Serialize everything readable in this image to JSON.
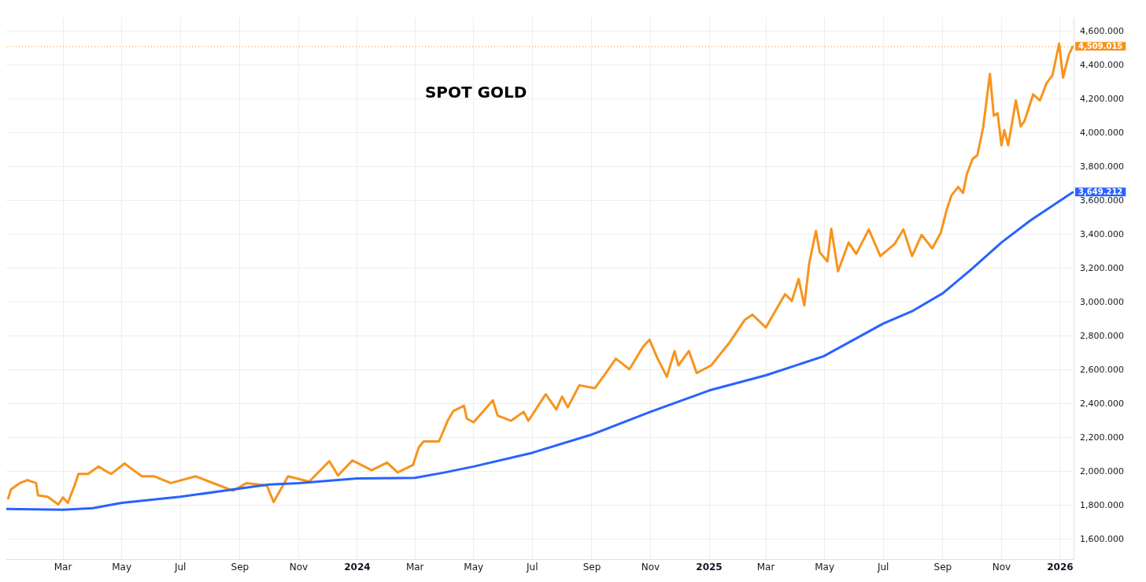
{
  "chart_data": {
    "type": "line",
    "title": "SPOT GOLD",
    "grid": true,
    "marker": "none",
    "line_style": "solid",
    "xlim": [
      "2023-01-01",
      "2026-01-15"
    ],
    "xticks": [
      {
        "value": "2023-03-01",
        "label": "Mar"
      },
      {
        "value": "2023-05-01",
        "label": "May"
      },
      {
        "value": "2023-07-01",
        "label": "Jul"
      },
      {
        "value": "2023-09-01",
        "label": "Sep"
      },
      {
        "value": "2023-11-01",
        "label": "Nov"
      },
      {
        "value": "2024-01-01",
        "label": "2024"
      },
      {
        "value": "2024-03-01",
        "label": "Mar"
      },
      {
        "value": "2024-05-01",
        "label": "May"
      },
      {
        "value": "2024-07-01",
        "label": "Jul"
      },
      {
        "value": "2024-09-01",
        "label": "Sep"
      },
      {
        "value": "2024-11-01",
        "label": "Nov"
      },
      {
        "value": "2025-01-01",
        "label": "2025"
      },
      {
        "value": "2025-03-01",
        "label": "Mar"
      },
      {
        "value": "2025-05-01",
        "label": "May"
      },
      {
        "value": "2025-07-01",
        "label": "Jul"
      },
      {
        "value": "2025-09-01",
        "label": "Sep"
      },
      {
        "value": "2025-11-01",
        "label": "Nov"
      },
      {
        "value": "2026-01-01",
        "label": "2026"
      }
    ],
    "ylim": [
      1480,
      4680
    ],
    "yticks": [
      {
        "value": 1600,
        "label": "1,600.000"
      },
      {
        "value": 1800,
        "label": "1,800.000"
      },
      {
        "value": 2000,
        "label": "2,000.000"
      },
      {
        "value": 2200,
        "label": "2,200.000"
      },
      {
        "value": 2400,
        "label": "2,400.000"
      },
      {
        "value": 2600,
        "label": "2,600.000"
      },
      {
        "value": 2800,
        "label": "2,800.000"
      },
      {
        "value": 3000,
        "label": "3,000.000"
      },
      {
        "value": 3200,
        "label": "3,200.000"
      },
      {
        "value": 3400,
        "label": "3,400.000"
      },
      {
        "value": 3600,
        "label": "3,600.000"
      },
      {
        "value": 3800,
        "label": "3,800.000"
      },
      {
        "value": 4000,
        "label": "4,000.000"
      },
      {
        "value": 4200,
        "label": "4,200.000"
      },
      {
        "value": 4400,
        "label": "4,400.000"
      },
      {
        "value": 4600,
        "label": "4,600.000"
      }
    ],
    "ref_lines": [
      {
        "axis": "y",
        "value": 4509.015,
        "color": "#f7941d",
        "line_style": "dotted"
      }
    ],
    "series": [
      {
        "color": "#2962ff",
        "x": [
          "2023-01-01",
          "2023-03-01",
          "2023-04-01",
          "2023-05-01",
          "2023-07-01",
          "2023-09-01",
          "2023-10-01",
          "2023-11-01",
          "2024-01-01",
          "2024-03-01",
          "2024-04-01",
          "2024-05-01",
          "2024-07-01",
          "2024-09-01",
          "2024-11-01",
          "2025-01-01",
          "2025-03-01",
          "2025-04-30",
          "2025-07-01",
          "2025-08-01",
          "2025-09-01",
          "2025-10-01",
          "2025-11-01",
          "2025-12-01",
          "2026-01-14"
        ],
        "values": [
          1779,
          1775,
          1784,
          1815,
          1851,
          1900,
          1923,
          1932,
          1959,
          1963,
          1995,
          2030,
          2111,
          2219,
          2353,
          2479,
          2569,
          2681,
          2874,
          2950,
          3053,
          3196,
          3353,
          3483,
          3649.212
        ],
        "value_labels": [
          null,
          null,
          null,
          null,
          null,
          null,
          null,
          null,
          null,
          null,
          null,
          null,
          null,
          null,
          null,
          null,
          null,
          null,
          null,
          null,
          null,
          null,
          null,
          null,
          "3,649.212"
        ]
      },
      {
        "color": "#f7941d",
        "x": [
          "2023-01-03",
          "2023-01-06",
          "2023-01-15",
          "2023-01-23",
          "2023-02-01",
          "2023-02-03",
          "2023-02-13",
          "2023-02-24",
          "2023-03-01",
          "2023-03-06",
          "2023-03-13",
          "2023-03-17",
          "2023-03-27",
          "2023-04-07",
          "2023-04-13",
          "2023-04-20",
          "2023-05-04",
          "2023-05-10",
          "2023-05-22",
          "2023-06-04",
          "2023-06-21",
          "2023-07-17",
          "2023-07-31",
          "2023-08-25",
          "2023-09-08",
          "2023-09-29",
          "2023-10-06",
          "2023-10-21",
          "2023-11-12",
          "2023-12-03",
          "2023-12-12",
          "2023-12-27",
          "2024-01-16",
          "2024-02-01",
          "2024-02-12",
          "2024-02-28",
          "2024-03-05",
          "2024-03-10",
          "2024-03-26",
          "2024-04-04",
          "2024-04-10",
          "2024-04-21",
          "2024-04-24",
          "2024-05-01",
          "2024-05-21",
          "2024-05-26",
          "2024-06-09",
          "2024-06-22",
          "2024-06-27",
          "2024-07-15",
          "2024-07-26",
          "2024-08-01",
          "2024-08-07",
          "2024-08-19",
          "2024-09-04",
          "2024-09-15",
          "2024-09-26",
          "2024-10-10",
          "2024-10-24",
          "2024-10-31",
          "2024-11-08",
          "2024-11-18",
          "2024-11-26",
          "2024-11-30",
          "2024-12-11",
          "2024-12-19",
          "2025-01-03",
          "2025-01-22",
          "2025-02-07",
          "2025-02-15",
          "2025-03-01",
          "2025-03-14",
          "2025-03-21",
          "2025-03-28",
          "2025-04-04",
          "2025-04-10",
          "2025-04-15",
          "2025-04-22",
          "2025-04-26",
          "2025-05-04",
          "2025-05-08",
          "2025-05-15",
          "2025-05-26",
          "2025-06-03",
          "2025-06-16",
          "2025-06-28",
          "2025-07-13",
          "2025-07-22",
          "2025-07-31",
          "2025-08-10",
          "2025-08-21",
          "2025-08-30",
          "2025-09-05",
          "2025-09-10",
          "2025-09-17",
          "2025-09-22",
          "2025-09-26",
          "2025-10-02",
          "2025-10-07",
          "2025-10-13",
          "2025-10-20",
          "2025-10-24",
          "2025-10-28",
          "2025-11-01",
          "2025-11-04",
          "2025-11-08",
          "2025-11-16",
          "2025-11-21",
          "2025-11-25",
          "2025-12-04",
          "2025-12-11",
          "2025-12-18",
          "2025-12-24",
          "2025-12-31",
          "2026-01-04",
          "2026-01-10",
          "2026-01-14"
        ],
        "values": [
          1842,
          1896,
          1932,
          1950,
          1932,
          1860,
          1851,
          1806,
          1847,
          1815,
          1918,
          1986,
          1986,
          2030,
          2008,
          1986,
          2048,
          2022,
          1972,
          1972,
          1932,
          1972,
          1941,
          1887,
          1932,
          1918,
          1820,
          1972,
          1941,
          2062,
          1977,
          2066,
          2008,
          2053,
          1995,
          2039,
          2143,
          2178,
          2178,
          2300,
          2358,
          2389,
          2313,
          2291,
          2421,
          2331,
          2300,
          2353,
          2300,
          2457,
          2367,
          2443,
          2380,
          2510,
          2492,
          2578,
          2667,
          2604,
          2735,
          2779,
          2672,
          2560,
          2712,
          2627,
          2712,
          2582,
          2627,
          2761,
          2896,
          2927,
          2851,
          2981,
          3048,
          3008,
          3138,
          2981,
          3228,
          3421,
          3295,
          3241,
          3434,
          3183,
          3353,
          3286,
          3430,
          3273,
          3345,
          3430,
          3273,
          3398,
          3318,
          3412,
          3546,
          3631,
          3681,
          3645,
          3757,
          3847,
          3869,
          4035,
          4349,
          4102,
          4116,
          3927,
          4017,
          3927,
          4192,
          4039,
          4071,
          4228,
          4192,
          4295,
          4340,
          4528,
          4326,
          4461,
          4509.015
        ],
        "value_labels": [
          null,
          null,
          null,
          null,
          null,
          null,
          null,
          null,
          null,
          null,
          null,
          null,
          null,
          null,
          null,
          null,
          null,
          null,
          null,
          null,
          null,
          null,
          null,
          null,
          null,
          null,
          null,
          null,
          null,
          null,
          null,
          null,
          null,
          null,
          null,
          null,
          null,
          null,
          null,
          null,
          null,
          null,
          null,
          null,
          null,
          null,
          null,
          null,
          null,
          null,
          null,
          null,
          null,
          null,
          null,
          null,
          null,
          null,
          null,
          null,
          null,
          null,
          null,
          null,
          null,
          null,
          null,
          null,
          null,
          null,
          null,
          null,
          null,
          null,
          null,
          null,
          null,
          null,
          null,
          null,
          null,
          null,
          null,
          null,
          null,
          null,
          null,
          null,
          null,
          null,
          null,
          null,
          null,
          null,
          null,
          null,
          null,
          null,
          null,
          null,
          null,
          null,
          null,
          null,
          null,
          null,
          null,
          null,
          null,
          null,
          null,
          null,
          null,
          null,
          null,
          null,
          "4,509.015"
        ]
      }
    ]
  }
}
